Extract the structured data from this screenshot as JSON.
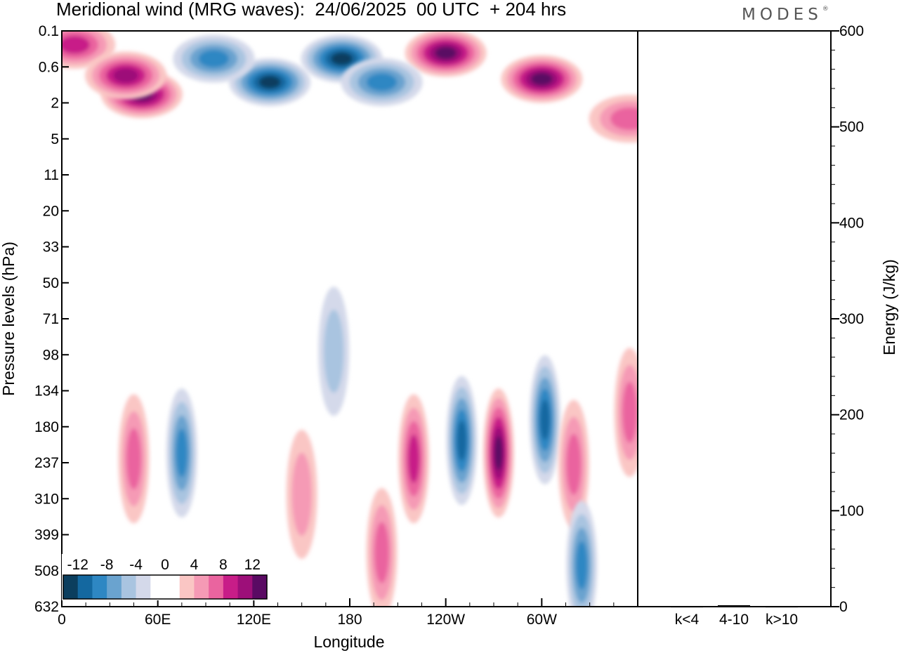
{
  "header": {
    "title": "Meridional wind (MRG waves):  24/06/2025  00 UTC  + 204 hrs",
    "brand": "MODES"
  },
  "chart_data": [
    {
      "type": "heatmap",
      "title": "Meridional wind (MRG waves):  24/06/2025  00 UTC  + 204 hrs",
      "xlabel": "Longitude",
      "ylabel": "Pressure levels (hPa)",
      "x_ticks": [
        "0",
        "60E",
        "120E",
        "180",
        "120W",
        "60W"
      ],
      "x_tick_degrees": [
        0,
        60,
        120,
        180,
        240,
        300
      ],
      "xlim": [
        0,
        360
      ],
      "y_ticks": [
        "0.1",
        "0.6",
        "2",
        "5",
        "11",
        "20",
        "33",
        "50",
        "71",
        "98",
        "134",
        "180",
        "237",
        "310",
        "399",
        "508",
        "632"
      ],
      "y_axis_inverted": true,
      "colorbar": {
        "labels": [
          "-12",
          "-8",
          "-4",
          "0",
          "4",
          "8",
          "12"
        ],
        "colors": [
          "#0b3e5e",
          "#1468a0",
          "#2e87c3",
          "#6aa3cf",
          "#a9c4e0",
          "#d4d9ea",
          "#ffffff",
          "#ffffff",
          "#fac6c4",
          "#f59ab5",
          "#ea649f",
          "#c81d88",
          "#9d0f79",
          "#5a0a63"
        ],
        "placement": "bottom-left"
      },
      "features": [
        {
          "lon": 50,
          "level": 1.5,
          "value": 13
        },
        {
          "lon": 8,
          "level": 0.2,
          "value": 8
        },
        {
          "lon": 40,
          "level": 0.8,
          "value": 9
        },
        {
          "lon": 130,
          "level": 1.0,
          "value": -14
        },
        {
          "lon": 175,
          "level": 0.4,
          "value": -13
        },
        {
          "lon": 95,
          "level": 0.4,
          "value": -7
        },
        {
          "lon": 240,
          "level": 0.3,
          "value": 13
        },
        {
          "lon": 300,
          "level": 0.9,
          "value": 11
        },
        {
          "lon": 200,
          "level": 1.0,
          "value": -7
        },
        {
          "lon": 355,
          "level": 3.0,
          "value": 6
        },
        {
          "lon": 250,
          "level": 200,
          "value": -10
        },
        {
          "lon": 273,
          "level": 220,
          "value": 13
        },
        {
          "lon": 302,
          "level": 170,
          "value": -9
        },
        {
          "lon": 220,
          "level": 230,
          "value": 7
        },
        {
          "lon": 75,
          "level": 220,
          "value": -7
        },
        {
          "lon": 45,
          "level": 230,
          "value": 6
        },
        {
          "lon": 355,
          "level": 160,
          "value": 6
        },
        {
          "lon": 320,
          "level": 240,
          "value": 5
        },
        {
          "lon": 150,
          "level": 300,
          "value": 4
        },
        {
          "lon": 170,
          "level": 95,
          "value": -3
        },
        {
          "lon": 200,
          "level": 450,
          "value": 6
        },
        {
          "lon": 325,
          "level": 490,
          "value": -7
        }
      ]
    },
    {
      "type": "bar",
      "ylabel": "Energy (J/kg)",
      "categories": [
        "k<4",
        "4-10",
        "k>10"
      ],
      "values": [
        0.3,
        1.5,
        0.3
      ],
      "ylim": [
        0,
        600
      ],
      "y_ticks": [
        "0",
        "100",
        "200",
        "300",
        "400",
        "500",
        "600"
      ],
      "y_axis_side": "right"
    }
  ]
}
